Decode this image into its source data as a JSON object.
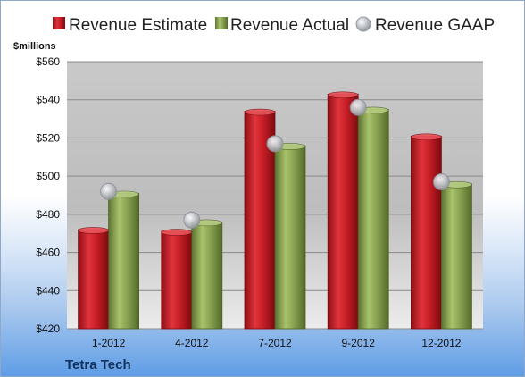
{
  "company": "Tetra Tech",
  "chart_data": {
    "type": "bar",
    "categories": [
      "1-2012",
      "4-2012",
      "7-2012",
      "9-2012",
      "12-2012"
    ],
    "series": [
      {
        "name": "Revenue Estimate",
        "kind": "bar",
        "color": "#d0202a",
        "values": [
          472,
          471,
          534,
          543,
          521
        ]
      },
      {
        "name": "Revenue Actual",
        "kind": "bar",
        "color": "#8aa452",
        "values": [
          491,
          476,
          516,
          535,
          496
        ]
      },
      {
        "name": "Revenue GAAP",
        "kind": "marker",
        "color": "#b9bcc4",
        "values": [
          492,
          477,
          517,
          536,
          497
        ]
      }
    ],
    "ylabel": "$millions",
    "ylim": [
      420,
      560
    ],
    "yticks": [
      420,
      440,
      460,
      480,
      500,
      520,
      540,
      560
    ],
    "ytick_labels": [
      "$420",
      "$440",
      "$460",
      "$480",
      "$500",
      "$520",
      "$540",
      "$560"
    ],
    "grid": true,
    "legend_position": "top"
  }
}
